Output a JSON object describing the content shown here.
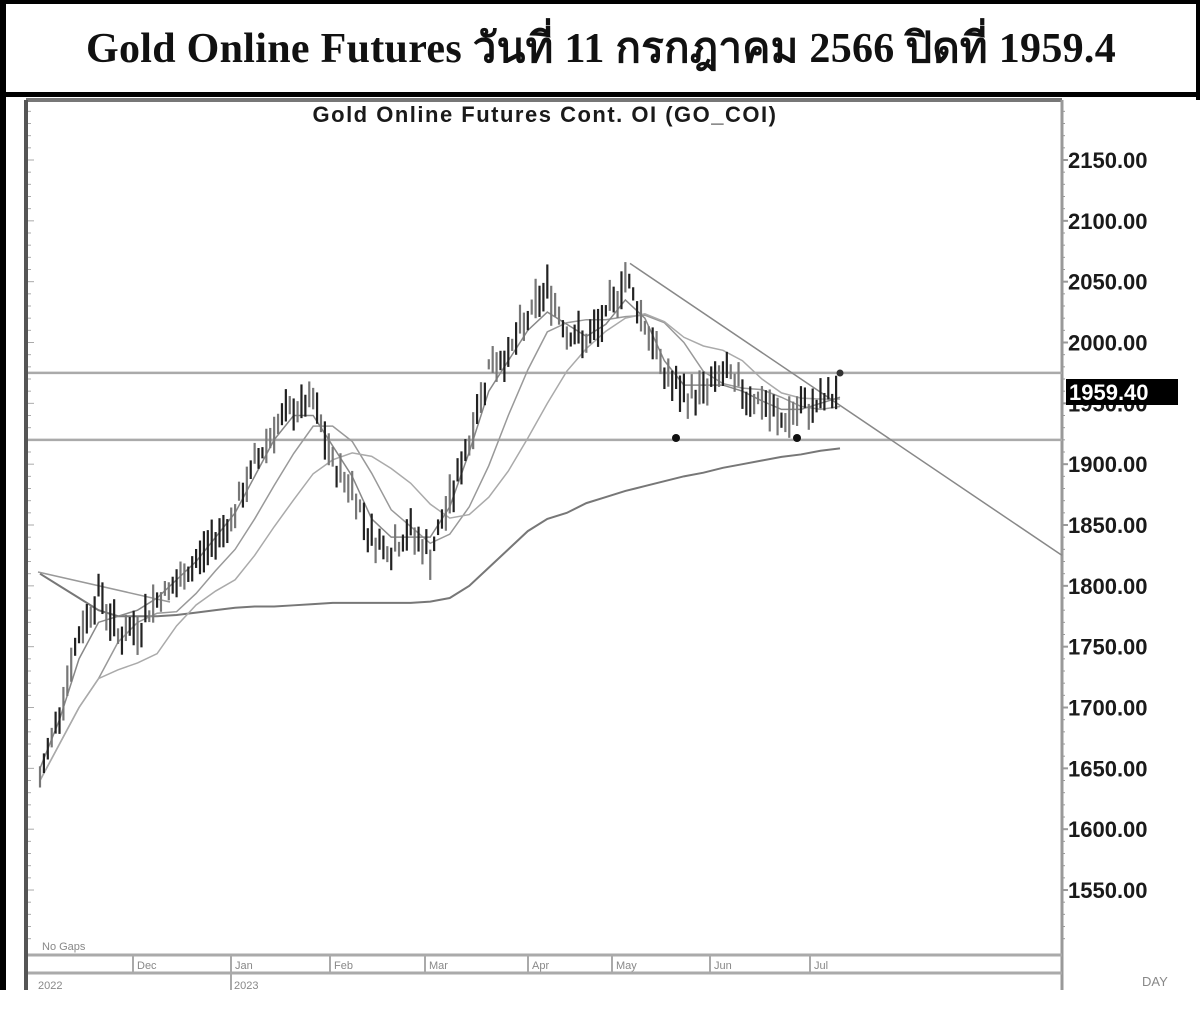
{
  "header": {
    "title": "Gold Online Futures วันที่ 11 กรกฎาคม 2566 ปิดที่ 1959.4"
  },
  "chart_data": {
    "type": "line",
    "title": "Gold Online Futures Cont. OI (GO_COI)",
    "xlabel": "",
    "ylabel": "",
    "ylim": [
      1500,
      2190
    ],
    "y_ticks": [
      "2150.00",
      "2100.00",
      "2050.00",
      "2000.00",
      "1950.00",
      "1900.00",
      "1850.00",
      "1800.00",
      "1750.00",
      "1700.00",
      "1650.00",
      "1600.00",
      "1550.00"
    ],
    "x_ticks": [
      "Dec",
      "Jan",
      "Feb",
      "Mar",
      "Apr",
      "May",
      "Jun",
      "Jul"
    ],
    "year_labels": [
      "2022",
      "2023"
    ],
    "last_price_label": "1959.40",
    "corner_note": "No Gaps",
    "period_label": "DAY",
    "grid": false,
    "horizontal_levels": [
      {
        "name": "resistance",
        "value": 1975
      },
      {
        "name": "support",
        "value": 1920
      }
    ],
    "trendline": {
      "start": {
        "x": "May",
        "value": 2065
      },
      "end": {
        "x": "beyond Jul",
        "value": 1825
      }
    },
    "series": [
      {
        "name": "price",
        "x": [
          "Nov-03",
          "Nov-10",
          "Nov-15",
          "Nov-20",
          "Nov-25",
          "Dec-01",
          "Dec-08",
          "Dec-15",
          "Dec-22",
          "Dec-29",
          "Jan-05",
          "Jan-12",
          "Jan-19",
          "Jan-26",
          "Feb-01",
          "Feb-03",
          "Feb-10",
          "Feb-17",
          "Feb-24",
          "Mar-03",
          "Mar-08",
          "Mar-10",
          "Mar-17",
          "Mar-24",
          "Mar-31",
          "Apr-06",
          "Apr-13",
          "Apr-20",
          "Apr-27",
          "May-03",
          "May-05",
          "May-12",
          "May-19",
          "May-26",
          "Jun-02",
          "Jun-09",
          "Jun-16",
          "Jun-23",
          "Jun-29",
          "Jul-03",
          "Jul-07",
          "Jul-11"
        ],
        "values": [
          1640,
          1700,
          1760,
          1795,
          1760,
          1765,
          1790,
          1800,
          1820,
          1840,
          1860,
          1900,
          1930,
          1945,
          1950,
          1900,
          1880,
          1840,
          1830,
          1845,
          1825,
          1870,
          1920,
          1980,
          1990,
          2020,
          2045,
          2010,
          2000,
          2020,
          2055,
          2015,
          1975,
          1955,
          1960,
          1975,
          1960,
          1950,
          1935,
          1945,
          1950,
          1959.4
        ]
      },
      {
        "name": "moving-average-short",
        "values": [
          1650,
          1690,
          1740,
          1770,
          1775,
          1780,
          1790,
          1805,
          1820,
          1840,
          1860,
          1890,
          1920,
          1940,
          1940,
          1915,
          1890,
          1855,
          1840,
          1840,
          1840,
          1865,
          1910,
          1960,
          1985,
          2010,
          2025,
          2015,
          2005,
          2015,
          2035,
          2020,
          1985,
          1965,
          1965,
          1965,
          1960,
          1952,
          1945,
          1945,
          1950,
          1955
        ]
      },
      {
        "name": "moving-average-long",
        "values": [
          1810,
          1800,
          1790,
          1780,
          1775,
          1775,
          1775,
          1776,
          1778,
          1780,
          1782,
          1783,
          1783,
          1784,
          1785,
          1786,
          1786,
          1786,
          1786,
          1786,
          1787,
          1790,
          1800,
          1815,
          1830,
          1845,
          1855,
          1860,
          1868,
          1873,
          1878,
          1882,
          1886,
          1890,
          1893,
          1897,
          1900,
          1903,
          1906,
          1908,
          1911,
          1913
        ]
      }
    ]
  }
}
